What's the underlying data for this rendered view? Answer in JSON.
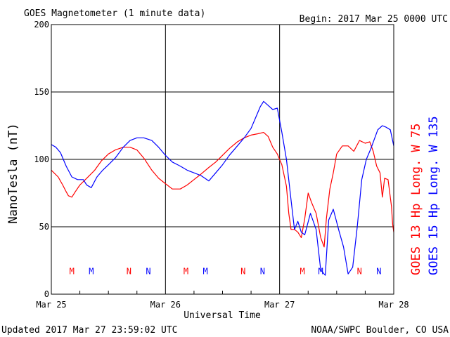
{
  "title": "GOES Magnetometer (1 minute data)",
  "begin_label": "Begin:  2017 Mar 25 0000 UTC",
  "updated_label": "Updated 2017 Mar 27 23:59:02 UTC",
  "source_label": "NOAA/SWPC Boulder, CO USA",
  "colors": {
    "goes13": "#ff0000",
    "goes15": "#0000ff",
    "grid": "#000000"
  },
  "chart_data": {
    "type": "line",
    "xlabel": "Universal Time",
    "ylabel": "NanoTesla (nT)",
    "ylim": [
      0,
      200
    ],
    "xlim_days": [
      0,
      3
    ],
    "yticks": [
      0,
      50,
      100,
      150,
      200
    ],
    "xticks": [
      {
        "day": 0,
        "label": "Mar 25"
      },
      {
        "day": 1,
        "label": "Mar 26"
      },
      {
        "day": 2,
        "label": "Mar 27"
      },
      {
        "day": 3,
        "label": "Mar 28"
      }
    ],
    "grid": true,
    "legend_placement": "right, vertical",
    "series": [
      {
        "name": "GOES 13 Hp",
        "longitude_label": "Long. W 75",
        "color": "#ff0000",
        "points": [
          [
            0.0,
            92
          ],
          [
            0.06,
            87
          ],
          [
            0.1,
            81
          ],
          [
            0.13,
            76
          ],
          [
            0.15,
            73
          ],
          [
            0.18,
            72
          ],
          [
            0.21,
            76
          ],
          [
            0.25,
            81
          ],
          [
            0.31,
            86
          ],
          [
            0.38,
            92
          ],
          [
            0.44,
            99
          ],
          [
            0.5,
            104
          ],
          [
            0.56,
            107
          ],
          [
            0.63,
            109
          ],
          [
            0.69,
            109
          ],
          [
            0.75,
            107
          ],
          [
            0.81,
            101
          ],
          [
            0.88,
            92
          ],
          [
            0.94,
            86
          ],
          [
            1.0,
            82
          ],
          [
            1.06,
            78
          ],
          [
            1.13,
            78
          ],
          [
            1.19,
            81
          ],
          [
            1.25,
            85
          ],
          [
            1.31,
            89
          ],
          [
            1.38,
            94
          ],
          [
            1.44,
            98
          ],
          [
            1.5,
            103
          ],
          [
            1.56,
            108
          ],
          [
            1.63,
            113
          ],
          [
            1.69,
            116
          ],
          [
            1.75,
            118
          ],
          [
            1.81,
            119
          ],
          [
            1.86,
            120
          ],
          [
            1.9,
            117
          ],
          [
            1.94,
            109
          ],
          [
            1.98,
            104
          ],
          [
            2.02,
            96
          ],
          [
            2.06,
            80
          ],
          [
            2.08,
            60
          ],
          [
            2.1,
            48
          ],
          [
            2.13,
            48
          ],
          [
            2.16,
            46
          ],
          [
            2.19,
            42
          ],
          [
            2.22,
            56
          ],
          [
            2.25,
            75
          ],
          [
            2.28,
            68
          ],
          [
            2.32,
            60
          ],
          [
            2.36,
            42
          ],
          [
            2.39,
            35
          ],
          [
            2.41,
            56
          ],
          [
            2.44,
            78
          ],
          [
            2.47,
            90
          ],
          [
            2.5,
            104
          ],
          [
            2.55,
            110
          ],
          [
            2.6,
            110
          ],
          [
            2.65,
            106
          ],
          [
            2.7,
            114
          ],
          [
            2.75,
            112
          ],
          [
            2.79,
            113
          ],
          [
            2.82,
            106
          ],
          [
            2.85,
            95
          ],
          [
            2.88,
            90
          ],
          [
            2.9,
            72
          ],
          [
            2.92,
            86
          ],
          [
            2.95,
            85
          ],
          [
            2.98,
            65
          ],
          [
            2.99,
            52
          ],
          [
            3.0,
            46
          ]
        ]
      },
      {
        "name": "GOES 15 Hp",
        "longitude_label": "Long. W 135",
        "color": "#0000ff",
        "points": [
          [
            0.0,
            111
          ],
          [
            0.04,
            109
          ],
          [
            0.08,
            105
          ],
          [
            0.13,
            95
          ],
          [
            0.18,
            87
          ],
          [
            0.23,
            85
          ],
          [
            0.28,
            85
          ],
          [
            0.31,
            81
          ],
          [
            0.35,
            79
          ],
          [
            0.4,
            87
          ],
          [
            0.45,
            92
          ],
          [
            0.5,
            96
          ],
          [
            0.56,
            101
          ],
          [
            0.63,
            109
          ],
          [
            0.69,
            114
          ],
          [
            0.75,
            116
          ],
          [
            0.81,
            116
          ],
          [
            0.88,
            114
          ],
          [
            0.94,
            109
          ],
          [
            1.0,
            103
          ],
          [
            1.06,
            98
          ],
          [
            1.13,
            95
          ],
          [
            1.19,
            92
          ],
          [
            1.25,
            90
          ],
          [
            1.31,
            88
          ],
          [
            1.38,
            84
          ],
          [
            1.44,
            90
          ],
          [
            1.5,
            96
          ],
          [
            1.56,
            103
          ],
          [
            1.63,
            110
          ],
          [
            1.69,
            116
          ],
          [
            1.75,
            123
          ],
          [
            1.79,
            131
          ],
          [
            1.83,
            139
          ],
          [
            1.86,
            143
          ],
          [
            1.9,
            140
          ],
          [
            1.94,
            137
          ],
          [
            1.98,
            138
          ],
          [
            2.02,
            120
          ],
          [
            2.06,
            100
          ],
          [
            2.1,
            70
          ],
          [
            2.13,
            48
          ],
          [
            2.16,
            54
          ],
          [
            2.19,
            46
          ],
          [
            2.22,
            44
          ],
          [
            2.27,
            60
          ],
          [
            2.32,
            48
          ],
          [
            2.36,
            18
          ],
          [
            2.4,
            14
          ],
          [
            2.43,
            55
          ],
          [
            2.47,
            63
          ],
          [
            2.52,
            47
          ],
          [
            2.56,
            35
          ],
          [
            2.6,
            15
          ],
          [
            2.64,
            20
          ],
          [
            2.68,
            50
          ],
          [
            2.72,
            85
          ],
          [
            2.76,
            100
          ],
          [
            2.8,
            108
          ],
          [
            2.86,
            122
          ],
          [
            2.9,
            125
          ],
          [
            2.93,
            124
          ],
          [
            2.97,
            122
          ],
          [
            3.0,
            110
          ]
        ]
      }
    ],
    "markers": [
      {
        "label": "M",
        "day": 0.18,
        "sat": "goes13"
      },
      {
        "label": "M",
        "day": 0.35,
        "sat": "goes15"
      },
      {
        "label": "N",
        "day": 0.68,
        "sat": "goes13"
      },
      {
        "label": "N",
        "day": 0.85,
        "sat": "goes15"
      },
      {
        "label": "M",
        "day": 1.18,
        "sat": "goes13"
      },
      {
        "label": "M",
        "day": 1.35,
        "sat": "goes15"
      },
      {
        "label": "N",
        "day": 1.68,
        "sat": "goes13"
      },
      {
        "label": "N",
        "day": 1.85,
        "sat": "goes15"
      },
      {
        "label": "M",
        "day": 2.2,
        "sat": "goes13"
      },
      {
        "label": "M",
        "day": 2.36,
        "sat": "goes15"
      },
      {
        "label": "N",
        "day": 2.7,
        "sat": "goes13"
      },
      {
        "label": "N",
        "day": 2.87,
        "sat": "goes15"
      }
    ],
    "marker_value": 17
  }
}
